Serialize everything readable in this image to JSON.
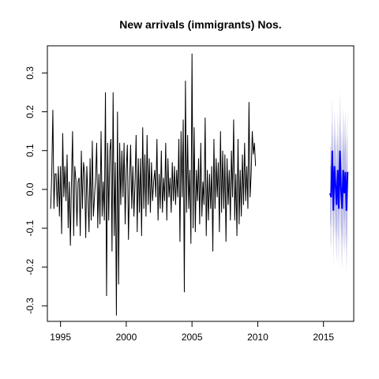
{
  "chart_data": {
    "type": "line",
    "title": "New arrivals (immigrants) Nos.",
    "xlabel": "",
    "ylabel": "",
    "xlim": [
      1994.0,
      2017.3
    ],
    "ylim": [
      -0.34,
      0.37
    ],
    "x_ticks": [
      1995,
      2000,
      2005,
      2010,
      2015
    ],
    "y_ticks": [
      -0.3,
      -0.2,
      -0.1,
      0.0,
      0.1,
      0.2,
      0.3
    ],
    "x_tick_labels": [
      "1995",
      "2000",
      "2005",
      "2010",
      "2015"
    ],
    "y_tick_labels": [
      "-0.3",
      "-0.2",
      "-0.1",
      "0.0",
      "0.1",
      "0.2",
      "0.3"
    ],
    "grid": false,
    "colors": {
      "observed": "#000000",
      "forecast": "#0000ff",
      "interval_dark": "#b3b3e6",
      "interval_light": "#dcdcf0"
    },
    "series": [
      {
        "kind": "observed",
        "start": 1994.25,
        "step": 0.0833333,
        "values": [
          -0.05,
          0.04,
          0.205,
          -0.05,
          0.04,
          0.04,
          -0.045,
          0.06,
          -0.07,
          0.06,
          -0.115,
          0.145,
          -0.02,
          0.06,
          -0.03,
          0.09,
          -0.1,
          0.02,
          -0.145,
          0.02,
          0.15,
          -0.12,
          0.06,
          0.025,
          -0.095,
          0.02,
          0.03,
          -0.12,
          0.1,
          -0.05,
          0.07,
          0.04,
          -0.125,
          0.06,
          -0.02,
          -0.11,
          0.08,
          -0.08,
          0.125,
          -0.07,
          -0.02,
          0.03,
          0.12,
          -0.1,
          0.04,
          -0.09,
          0.15,
          -0.07,
          0.02,
          -0.08,
          0.25,
          -0.275,
          0.12,
          -0.08,
          0.1,
          0.13,
          -0.16,
          0.25,
          -0.12,
          0.07,
          -0.325,
          0.2,
          -0.245,
          0.12,
          -0.04,
          0.1,
          -0.02,
          0.12,
          -0.09,
          0.05,
          0.115,
          -0.13,
          0.02,
          0.115,
          -0.05,
          0.06,
          -0.07,
          0.02,
          0.14,
          -0.11,
          0.08,
          -0.06,
          0.08,
          -0.12,
          0.16,
          -0.05,
          0.09,
          -0.07,
          0.14,
          -0.04,
          0.08,
          -0.06,
          0.07,
          -0.03,
          0.02,
          0.05,
          -0.02,
          0.13,
          -0.08,
          0.04,
          -0.05,
          0.1,
          -0.06,
          0.03,
          -0.03,
          0.12,
          -0.08,
          0.08,
          -0.02,
          0.03,
          -0.06,
          0.07,
          -0.03,
          0.06,
          -0.04,
          0.05,
          -0.02,
          0.13,
          -0.135,
          0.15,
          -0.02,
          0.18,
          -0.265,
          0.28,
          -0.06,
          0.14,
          -0.05,
          0.05,
          -0.14,
          0.35,
          -0.1,
          0.16,
          -0.11,
          0.05,
          -0.03,
          0.08,
          -0.09,
          0.12,
          -0.07,
          0.02,
          -0.04,
          0.185,
          -0.12,
          0.05,
          -0.08,
          0.04,
          -0.05,
          0.06,
          -0.16,
          0.13,
          -0.05,
          0.08,
          -0.02,
          0.07,
          -0.11,
          0.15,
          -0.06,
          0.1,
          -0.05,
          0.09,
          -0.135,
          0.08,
          -0.04,
          0.05,
          -0.08,
          0.1,
          -0.02,
          0.18,
          -0.08,
          0.04,
          -0.12,
          0.13,
          -0.09,
          0.05,
          -0.07,
          0.09,
          -0.04,
          0.12,
          -0.03,
          0.06,
          -0.05,
          0.225,
          -0.02,
          0.04,
          0.15,
          0.09,
          0.12,
          0.06
        ]
      },
      {
        "kind": "forecast",
        "start": 2015.5,
        "step": 0.0833333,
        "values": [
          -0.01,
          -0.02,
          0.1,
          -0.055,
          0.06,
          0.01,
          -0.04,
          0.05,
          -0.05,
          0.1,
          0.0,
          -0.05,
          0.05,
          -0.01,
          0.045,
          -0.055,
          0.045
        ],
        "interval_halfwidth": [
          0.12,
          0.13,
          0.14,
          0.14,
          0.145,
          0.145,
          0.15,
          0.15,
          0.15,
          0.155,
          0.155,
          0.155,
          0.16,
          0.16,
          0.16,
          0.16,
          0.165
        ]
      }
    ]
  }
}
